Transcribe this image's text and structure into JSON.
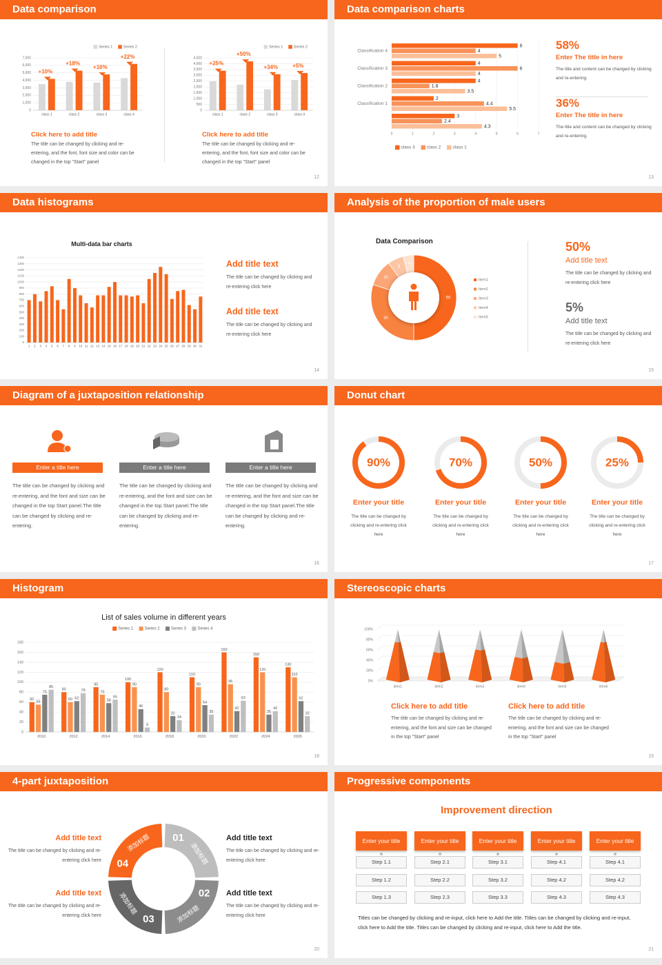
{
  "slides": [
    {
      "title": "Data comparison",
      "page": 12,
      "chart_data": [
        {
          "type": "bar",
          "categories": [
            "class 1",
            "class 2",
            "class 3",
            "class 4"
          ],
          "series": [
            {
              "name": "Series 1",
              "color": "#d9d9d9",
              "values": [
                3500,
                3800,
                3700,
                4300
              ]
            },
            {
              "name": "Series 2",
              "color": "#f7661c",
              "values": [
                4200,
                5300,
                4800,
                6200
              ]
            }
          ],
          "ylim": [
            0,
            7000
          ],
          "yticks": [
            0,
            {
              "value": 1000,
              "label": "1,000"
            },
            {
              "value": 2000,
              "label": "2,000"
            },
            {
              "value": 3000,
              "label": "3,000"
            },
            {
              "value": 4000,
              "label": "4,000"
            },
            {
              "value": 5000,
              "label": "5,000"
            },
            {
              "value": 6000,
              "label": "6,000"
            },
            {
              "value": 7000,
              "label": "7,000"
            }
          ],
          "grid": true,
          "legend": "top-right",
          "annotations": [
            "+10%",
            "+18%",
            "+16%",
            "+22%"
          ]
        },
        {
          "type": "bar",
          "categories": [
            "class 1",
            "class 2",
            "class 3",
            "class 4"
          ],
          "series": [
            {
              "name": "Series 1",
              "color": "#d9d9d9",
              "values": [
                2500,
                2200,
                1800,
                2600
              ]
            },
            {
              "name": "Series 2",
              "color": "#f7661c",
              "values": [
                3400,
                4200,
                3100,
                3200
              ]
            }
          ],
          "ylim": [
            0,
            4500
          ],
          "yticks": [
            0,
            500,
            {
              "value": 1000,
              "label": "1,000"
            },
            {
              "value": 1500,
              "label": "1,500"
            },
            {
              "value": 2000,
              "label": "2,000"
            },
            {
              "value": 2500,
              "label": "2,500"
            },
            {
              "value": 3000,
              "label": "3,000"
            },
            {
              "value": 3500,
              "label": "3,500"
            },
            {
              "value": 4000,
              "label": "4,000"
            },
            {
              "value": 4500,
              "label": "4,500"
            }
          ],
          "grid": true,
          "legend": "top-right",
          "annotations": [
            "+25%",
            "+50%",
            "+34%",
            "+5%"
          ]
        }
      ],
      "captions": [
        {
          "heading": "Click here to add title",
          "body": "The title can be changed by clicking and re-entering, and the font, font size and color can be changed in the top \"Start\" panel"
        },
        {
          "heading": "Click here to add title",
          "body": "The title can be changed by clicking and re-entering, and the font, font size and color can be changed in the top \"Start\" panel"
        }
      ]
    },
    {
      "title": "Data comparison charts",
      "page": 13,
      "chart_data": {
        "type": "hbar",
        "categories": [
          "Classification 4",
          "Classification 3",
          "Classification 2",
          "Classification 1",
          null
        ],
        "series": [
          {
            "name": "class 3",
            "color": "#f7661c",
            "values": [
              6,
              4,
              4,
              2,
              3
            ]
          },
          {
            "name": "class 2",
            "color": "#f8935a",
            "values": [
              4,
              6,
              1.8,
              4.4,
              2.4
            ]
          },
          {
            "name": "class 1",
            "color": "#fbbf98",
            "values": [
              5,
              4,
              3.5,
              5.5,
              4.3
            ]
          }
        ],
        "xlim": [
          0,
          7
        ],
        "xticks": [
          0,
          1,
          2,
          3,
          4,
          5,
          6,
          7
        ],
        "legend": "bottom-left"
      },
      "stats": [
        {
          "value": "58%",
          "heading": "Enter The title in here",
          "body": "The title and content can be changed by clicking and re-entering."
        },
        {
          "value": "36%",
          "heading": "Enter The title in here",
          "body": "The title and content can be changed by clicking and re-entering."
        }
      ]
    },
    {
      "title": "Data histograms",
      "page": 14,
      "chart_data": {
        "type": "bar",
        "title": "Multi-data bar charts",
        "categories": [
          "1",
          "2",
          "3",
          "4",
          "5",
          "6",
          "7",
          "8",
          "9",
          "10",
          "11",
          "12",
          "13",
          "14",
          "15",
          "16",
          "17",
          "18",
          "19",
          "20",
          "21",
          "22",
          "23",
          "24",
          "25",
          "26",
          "27",
          "28",
          "29",
          "30",
          "31"
        ],
        "values": [
          700,
          800,
          680,
          850,
          930,
          700,
          550,
          1050,
          900,
          780,
          650,
          580,
          780,
          780,
          920,
          1000,
          780,
          780,
          760,
          780,
          650,
          1050,
          1150,
          1250,
          1130,
          720,
          850,
          870,
          620,
          550,
          760
        ],
        "color": "#f7661c",
        "ylim": [
          0,
          1400
        ],
        "yticks": [
          0,
          100,
          200,
          300,
          400,
          500,
          600,
          700,
          800,
          900,
          1000,
          1100,
          1200,
          1300,
          1400
        ],
        "grid": true
      },
      "captions": [
        {
          "heading": "Add title text",
          "body": "The title can be changed by clicking and re-entering click here"
        },
        {
          "heading": "Add title text",
          "body": "The title can be changed by clicking and re-entering click here"
        }
      ]
    },
    {
      "title": "Analysis of the proportion of male users",
      "page": 15,
      "chart_data": {
        "type": "donut",
        "title": "Data Comparison",
        "categories": [
          "Item1",
          "Item2",
          "Item3",
          "Item4",
          "Item5"
        ],
        "values": [
          50,
          30,
          10,
          6,
          4
        ],
        "colors": [
          "#f7661c",
          "#f8823f",
          "#fba676",
          "#fcc6a4",
          "#fde2d0"
        ],
        "legend": "right"
      },
      "stats": [
        {
          "value": "50%",
          "heading": "Add title text",
          "body": "The title can be changed by clicking and re-entering click here"
        },
        {
          "value": "5%",
          "heading": "Add title text",
          "body": "The title can be changed by clicking and re-entering click here"
        }
      ]
    },
    {
      "title": "Diagram of a juxtaposition relationship",
      "page": 16,
      "items": [
        {
          "heading": "Enter a title here",
          "body": "The title can be changed by clicking and re-entering, and the font and size can be changed in the top Start panel.The title can be changed by clicking and re-entering."
        },
        {
          "heading": "Enter a title here",
          "body": "The title can be changed by clicking and re-entering, and the font and size can be changed in the top Start panel.The title can be changed by clicking and re-entering."
        },
        {
          "heading": "Enter a title here",
          "body": "The title can be changed by clicking and re-entering, and the font and size can be changed in the top Start panel.The title can be changed by clicking and re-entering."
        }
      ]
    },
    {
      "title": "Donut chart",
      "page": 17,
      "chart_data": {
        "type": "ring",
        "values": [
          90,
          70,
          50,
          25
        ],
        "value_labels": [
          "90%",
          "70%",
          "50%",
          "25%"
        ],
        "color": "#f7661c",
        "track_color": "#ebebeb"
      },
      "items": [
        {
          "heading": "Enter your title",
          "body": "The title can be changed by clicking and re-entering click here"
        },
        {
          "heading": "Enter your title",
          "body": "The title can be changed by clicking and re-entering click here"
        },
        {
          "heading": "Enter your title",
          "body": "The title can be changed by clicking and re-entering click here"
        },
        {
          "heading": "Enter your title",
          "body": "The title can be changed by clicking and re-entering click here"
        }
      ]
    },
    {
      "title": "Histogram",
      "page": 18,
      "chart_data": {
        "type": "bar",
        "title": "List of sales volume in different years",
        "categories": [
          "2010",
          "2012",
          "2014",
          "2016",
          "2018",
          "2020",
          "2022",
          "2024",
          "2026"
        ],
        "series": [
          {
            "name": "Series 1",
            "color": "#f7661c",
            "values": [
              60,
              80,
              90,
              100,
              120,
              110,
              160,
              150,
              130
            ]
          },
          {
            "name": "Series 2",
            "color": "#f8934f",
            "values": [
              55,
              60,
              75,
              90,
              80,
              90,
              96,
              120,
              110
            ]
          },
          {
            "name": "Series 3",
            "color": "#808080",
            "values": [
              75,
              62,
              58,
              46,
              32,
              54,
              42,
              35,
              62
            ]
          },
          {
            "name": "Series 4",
            "color": "#bfbfbf",
            "values": [
              85,
              78,
              65,
              9,
              24,
              35,
              63,
              42,
              32
            ]
          }
        ],
        "ylim": [
          0,
          180
        ],
        "yticks": [
          0,
          20,
          40,
          60,
          80,
          100,
          120,
          140,
          160,
          180
        ],
        "grid": true,
        "legend": "top"
      }
    },
    {
      "title": "Stereoscopic charts",
      "page": 19,
      "chart_data": {
        "type": "pyramid",
        "categories": [
          "item1",
          "item2",
          "item3",
          "item4",
          "item5",
          "item6"
        ],
        "values": [
          75,
          55,
          60,
          45,
          35,
          75
        ],
        "color": "#f7661c",
        "ylim": [
          0,
          100
        ],
        "yticks": [
          {
            "value": 0,
            "label": "0%"
          },
          {
            "value": 20,
            "label": "20%"
          },
          {
            "value": 40,
            "label": "40%"
          },
          {
            "value": 60,
            "label": "60%"
          },
          {
            "value": 80,
            "label": "80%"
          },
          {
            "value": 100,
            "label": "100%"
          }
        ],
        "grid": true
      },
      "captions": [
        {
          "heading": "Click here to add title",
          "body": "The title can be changed by clicking and re-entering, and the font and size can be changed in the top \"Start\" panel"
        },
        {
          "heading": "Click here to add title",
          "body": "The title can be changed by clicking and re-entering, and the font and size can be changed in the top \"Start\" panel"
        }
      ]
    },
    {
      "title": "4-part juxtaposition",
      "page": 20,
      "segments": [
        {
          "number": "01",
          "label": "添加标题",
          "color": "#bdbdbd"
        },
        {
          "number": "02",
          "label": "添加标题",
          "color": "#8c8c8c"
        },
        {
          "number": "03",
          "label": "添加标题",
          "color": "#666666"
        },
        {
          "number": "04",
          "label": "添加标题",
          "color": "#f7661c"
        }
      ],
      "items": [
        {
          "heading": "Add title text",
          "body": "The title can be changed by clicking and re-entering click here"
        },
        {
          "heading": "Add title text",
          "body": "The title can be changed by clicking and re-entering click here"
        },
        {
          "heading": "Add title text",
          "body": "The title can be changed by clicking and re-entering click here"
        },
        {
          "heading": "Add title text",
          "body": "The title can be changed by clicking and re-entering click here"
        }
      ]
    },
    {
      "title": "Progressive components",
      "page": 21,
      "heading": "Improvement direction",
      "columns": [
        {
          "title": "Enter your title",
          "steps": [
            "Step 1.1",
            "Step 1.2",
            "Step 1.3"
          ]
        },
        {
          "title": "Enter your title",
          "steps": [
            "Step 2.1",
            "Step 2.2",
            "Step 2.3"
          ]
        },
        {
          "title": "Enter your title",
          "steps": [
            "Step 3.1",
            "Step 3.2",
            "Step 3.3"
          ]
        },
        {
          "title": "Enter your title",
          "steps": [
            "Step 4.1",
            "Step 4.2",
            "Step 4.3"
          ]
        },
        {
          "title": "Enter your title",
          "steps": [
            "Step 4.1",
            "Step 4.2",
            "Step 4.3"
          ]
        }
      ],
      "footer": "Titles can be changed by clicking and re-input, click here to Add the title. Titles can be changed by clicking and re-input, click here to Add the title. Titles can be changed by clicking and re-input, click here to Add the title."
    }
  ]
}
